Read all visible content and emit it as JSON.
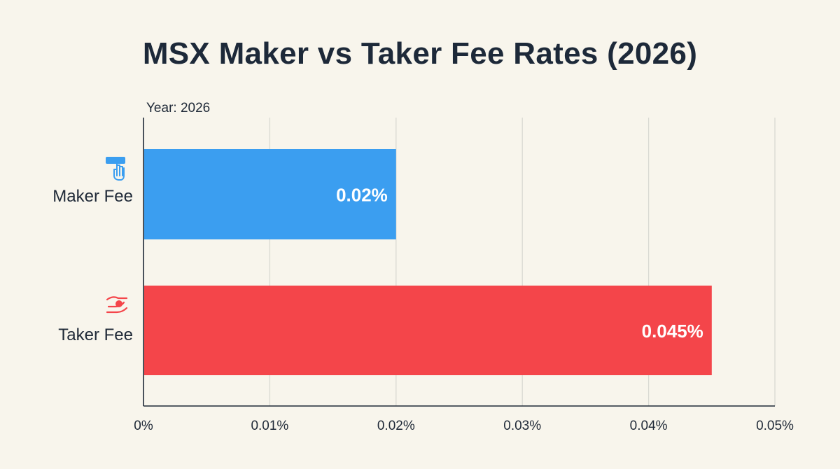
{
  "colors": {
    "background": "#f8f5ec",
    "title": "#1d2939",
    "axis": "#1f2937",
    "grid": "#d9d9d2",
    "maker": "#3b9ef0",
    "taker": "#f4454a",
    "bar_label": "#ffffff"
  },
  "icons": {
    "maker": "hand-pointer-icon",
    "taker": "handshake-icon"
  },
  "chart_data": {
    "type": "bar",
    "orientation": "horizontal",
    "title": "MSX Maker vs Taker Fee Rates (2026)",
    "subtitle": "Year: 2026",
    "categories": [
      "Maker Fee",
      "Taker Fee"
    ],
    "values": [
      0.02,
      0.045
    ],
    "value_labels": [
      "0.02%",
      "0.045%"
    ],
    "bar_colors": [
      "#3b9ef0",
      "#f4454a"
    ],
    "xlabel": "",
    "ylabel": "",
    "xlim": [
      0,
      0.05
    ],
    "x_ticks": [
      0,
      0.01,
      0.02,
      0.03,
      0.04,
      0.05
    ],
    "x_tick_labels": [
      "0%",
      "0.01%",
      "0.02%",
      "0.03%",
      "0.04%",
      "0.05%"
    ],
    "grid": true
  }
}
